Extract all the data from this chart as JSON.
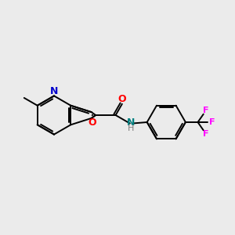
{
  "background_color": "#EBEBEB",
  "bond_color": "#000000",
  "n_color": "#0000CC",
  "o_color": "#FF0000",
  "f_color": "#FF00FF",
  "nh_color": "#008080",
  "h_color": "#808080",
  "figsize": [
    3.0,
    3.0
  ],
  "dpi": 100,
  "xlim": [
    0,
    10
  ],
  "ylim": [
    2,
    8
  ]
}
